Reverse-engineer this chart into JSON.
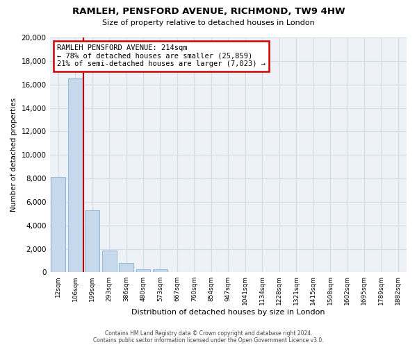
{
  "title": "RAMLEH, PENSFORD AVENUE, RICHMOND, TW9 4HW",
  "subtitle": "Size of property relative to detached houses in London",
  "xlabel": "Distribution of detached houses by size in London",
  "ylabel": "Number of detached properties",
  "categories": [
    "12sqm",
    "106sqm",
    "199sqm",
    "293sqm",
    "386sqm",
    "480sqm",
    "573sqm",
    "667sqm",
    "760sqm",
    "854sqm",
    "947sqm",
    "1041sqm",
    "1134sqm",
    "1228sqm",
    "1321sqm",
    "1415sqm",
    "1508sqm",
    "1602sqm",
    "1695sqm",
    "1789sqm",
    "1882sqm"
  ],
  "values": [
    8100,
    16500,
    5300,
    1850,
    800,
    280,
    280,
    0,
    0,
    0,
    0,
    0,
    0,
    0,
    0,
    0,
    0,
    0,
    0,
    0,
    0
  ],
  "bar_color": "#c5d8ec",
  "bar_edge_color": "#8fb8d8",
  "vline_color": "#cc0000",
  "annotation_title": "RAMLEH PENSFORD AVENUE: 214sqm",
  "annotation_line1": "← 78% of detached houses are smaller (25,859)",
  "annotation_line2": "21% of semi-detached houses are larger (7,023) →",
  "annotation_box_color": "#cc0000",
  "ylim": [
    0,
    20000
  ],
  "yticks": [
    0,
    2000,
    4000,
    6000,
    8000,
    10000,
    12000,
    14000,
    16000,
    18000,
    20000
  ],
  "grid_color": "#d0dce8",
  "bg_color": "#eef2f7",
  "footer1": "Contains HM Land Registry data © Crown copyright and database right 2024.",
  "footer2": "Contains public sector information licensed under the Open Government Licence v3.0."
}
